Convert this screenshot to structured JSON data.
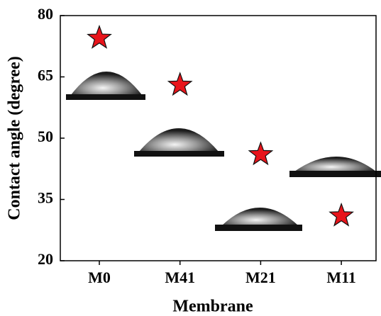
{
  "chart_data": {
    "type": "scatter",
    "x_label": "Membrane",
    "y_label": "Contact angle (degree)",
    "categories": [
      "M0",
      "M41",
      "M21",
      "M11"
    ],
    "values": [
      74.5,
      63,
      46,
      31
    ],
    "color": "#e8141b",
    "ylim": [
      20,
      80
    ],
    "yticks": [
      20,
      35,
      50,
      65,
      80
    ]
  }
}
